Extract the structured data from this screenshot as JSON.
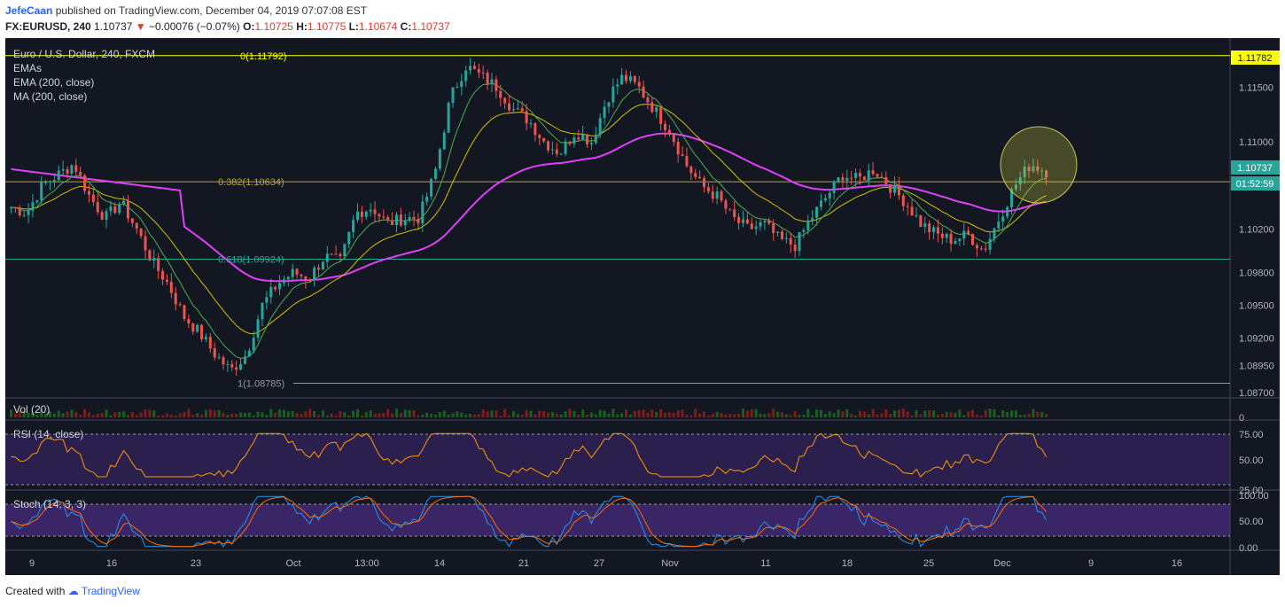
{
  "header": {
    "author": "JefeCaan",
    "published": "published on TradingView.com, December 04, 2019 07:07:08 EST",
    "symbol_line": "FX:EURUSD, 240",
    "last": "1.10737",
    "change": "−0.00076 (−0.07%)",
    "o_label": "O:",
    "o": "1.10725",
    "h_label": "H:",
    "h": "1.10775",
    "l_label": "L:",
    "l": "1.10674",
    "c_label": "C:",
    "c": "1.10737"
  },
  "legend": {
    "title": "Euro / U.S. Dollar, 240, FXCM",
    "line1": "EMAs",
    "line2": "EMA (200, close)",
    "line3": "MA (200, close)"
  },
  "panes": {
    "vol": "Vol (20)",
    "rsi": "RSI (14, close)",
    "stoch": "Stoch (14, 3, 3)"
  },
  "footer": {
    "created": "Created with",
    "brand": "TradingView"
  },
  "colors": {
    "background": "#131722",
    "up": "#26a69a",
    "down": "#ef5350",
    "fib": "#ffff00",
    "ma200": "#e040fb",
    "ema": "#d4c100",
    "accent_price": "#26a69a"
  },
  "chart_data": {
    "type": "candlestick",
    "symbol": "FX:EURUSD",
    "timeframe": "240",
    "price_axis_ticks": [
      "1.11500",
      "1.11000",
      "1.10200",
      "1.09800",
      "1.09500",
      "1.09200",
      "1.08950",
      "1.08700"
    ],
    "price_axis_values": [
      1.115,
      1.11,
      1.102,
      1.098,
      1.095,
      1.092,
      1.0895,
      1.087
    ],
    "price_labels": {
      "top": "1.11782",
      "current": "1.10737",
      "countdown": "01:52:59"
    },
    "x_ticks": [
      "9",
      "16",
      "23",
      "Oct",
      "13:00",
      "14",
      "21",
      "27",
      "Nov",
      "11",
      "18",
      "25",
      "Dec",
      "9",
      "16"
    ],
    "fib_levels": [
      {
        "label": "0(1.11792)",
        "value": 1.11792
      },
      {
        "label": "0.382(1.10634)",
        "value": 1.10634
      },
      {
        "label": "0.618(1.09924)",
        "value": 1.09924
      },
      {
        "label": "1(1.08785)",
        "value": 1.08785
      }
    ],
    "approx_close_series": [
      1.104,
      1.1035,
      1.106,
      1.107,
      1.108,
      1.105,
      1.103,
      1.1045,
      1.102,
      1.099,
      1.097,
      1.094,
      1.0925,
      1.0905,
      1.089,
      1.0905,
      1.095,
      1.097,
      1.098,
      1.0975,
      1.0995,
      1.099,
      1.1035,
      1.104,
      1.1025,
      1.103,
      1.103,
      1.107,
      1.114,
      1.117,
      1.116,
      1.115,
      1.113,
      1.112,
      1.11,
      1.109,
      1.111,
      1.11,
      1.114,
      1.116,
      1.115,
      1.113,
      1.111,
      1.108,
      1.106,
      1.105,
      1.103,
      1.102,
      1.1025,
      1.101,
      1.1005,
      1.103,
      1.105,
      1.107,
      1.1065,
      1.1075,
      1.106,
      1.1045,
      1.1025,
      1.1015,
      1.101,
      1.1015,
      1.1,
      1.103,
      1.106,
      1.108,
      1.1073
    ],
    "rsi_ticks": [
      "75.00",
      "50.00",
      "25.00"
    ],
    "stoch_ticks": [
      "100.00",
      "50.00",
      "0.00"
    ],
    "vol_ticks": [
      "0"
    ]
  }
}
